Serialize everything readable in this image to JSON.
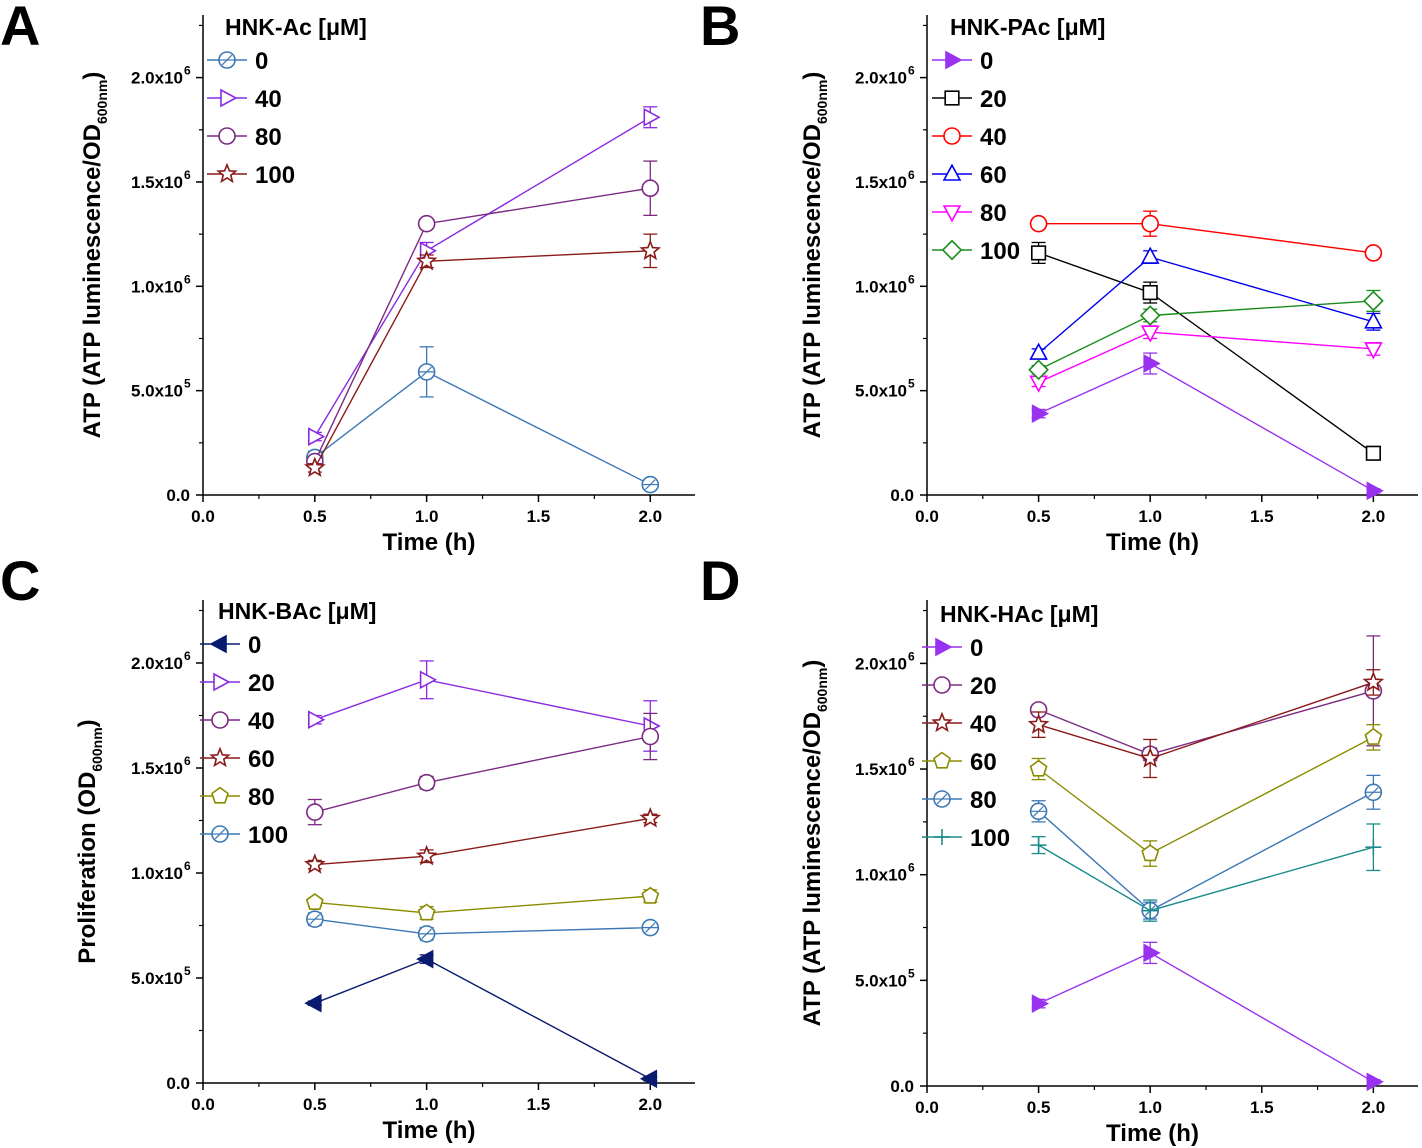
{
  "figure": {
    "exponent_mark": "6",
    "exponent_mark_small": "5"
  },
  "chart_data": [
    {
      "type": "line",
      "panel": "A",
      "legend_title": "HNK-Ac [μM]",
      "xlabel": "Time (h)",
      "ylabel_main": "ATP (ATP luminescence/OD",
      "ylabel_sub": "600nm",
      "ylabel_end": ")",
      "xlim": [
        0,
        2.2
      ],
      "ylim": [
        0,
        2300000
      ],
      "xticks": [
        "0.0",
        "0.5",
        "1.0",
        "1.5",
        "2.0"
      ],
      "yticks": [
        "0.0",
        "5.0x10",
        "1.0x10",
        "1.5x10",
        "2.0x10"
      ],
      "x": [
        0.5,
        1.0,
        2.0
      ],
      "series": [
        {
          "name": "0",
          "color": "#3c78b4",
          "marker": "circle-cross",
          "values": [
            180000,
            590000,
            50000
          ],
          "errors": [
            30000,
            120000,
            20000
          ]
        },
        {
          "name": "40",
          "color": "#8a2be2",
          "marker": "triangle-right",
          "values": [
            280000,
            1170000,
            1810000
          ],
          "errors": [
            20000,
            40000,
            50000
          ]
        },
        {
          "name": "80",
          "color": "#7b2a82",
          "marker": "circle",
          "values": [
            160000,
            1300000,
            1470000
          ],
          "errors": [
            20000,
            20000,
            130000
          ]
        },
        {
          "name": "100",
          "color": "#8b1a1a",
          "marker": "star",
          "values": [
            130000,
            1120000,
            1170000
          ],
          "errors": [
            20000,
            30000,
            80000
          ]
        }
      ]
    },
    {
      "type": "line",
      "panel": "B",
      "legend_title": "HNK-PAc [μM]",
      "xlabel": "Time (h)",
      "ylabel_main": "ATP (ATP luminescence/OD",
      "ylabel_sub": "600nm",
      "ylabel_end": ")",
      "xlim": [
        0,
        2.2
      ],
      "ylim": [
        0,
        2300000
      ],
      "xticks": [
        "0.0",
        "0.5",
        "1.0",
        "1.5",
        "2.0"
      ],
      "yticks": [
        "0.0",
        "5.0x10",
        "1.0x10",
        "1.5x10",
        "2.0x10"
      ],
      "x": [
        0.5,
        1.0,
        2.0
      ],
      "series": [
        {
          "name": "0",
          "color": "#9932f0",
          "marker": "triangle-right-filled",
          "values": [
            390000,
            630000,
            20000
          ],
          "errors": [
            20000,
            50000,
            10000
          ]
        },
        {
          "name": "20",
          "color": "#000000",
          "marker": "square",
          "values": [
            1160000,
            970000,
            200000
          ],
          "errors": [
            50000,
            50000,
            20000
          ]
        },
        {
          "name": "40",
          "color": "#ff0000",
          "marker": "circle",
          "values": [
            1300000,
            1300000,
            1160000
          ],
          "errors": [
            20000,
            60000,
            20000
          ]
        },
        {
          "name": "60",
          "color": "#0000ee",
          "marker": "triangle-up",
          "values": [
            680000,
            1140000,
            830000
          ],
          "errors": [
            20000,
            30000,
            40000
          ]
        },
        {
          "name": "80",
          "color": "#ff00ff",
          "marker": "triangle-down",
          "values": [
            540000,
            780000,
            700000
          ],
          "errors": [
            20000,
            30000,
            30000
          ]
        },
        {
          "name": "100",
          "color": "#1a8c1a",
          "marker": "diamond",
          "values": [
            600000,
            860000,
            930000
          ],
          "errors": [
            20000,
            30000,
            50000
          ]
        }
      ]
    },
    {
      "type": "line",
      "panel": "C",
      "legend_title": "HNK-BAc [μM]",
      "xlabel": "Time (h)",
      "ylabel_main": "Proliferation (OD",
      "ylabel_sub": "600nm",
      "ylabel_end": ")",
      "xlim": [
        0,
        2.2
      ],
      "ylim": [
        0,
        2300000
      ],
      "xticks": [
        "0.0",
        "0.5",
        "1.0",
        "1.5",
        "2.0"
      ],
      "yticks": [
        "0.0",
        "5.0x10",
        "1.0x10",
        "1.5x10",
        "2.0x10"
      ],
      "x": [
        0.5,
        1.0,
        2.0
      ],
      "series": [
        {
          "name": "0",
          "color": "#0a1a6e",
          "marker": "triangle-left-filled",
          "values": [
            380000,
            590000,
            20000
          ],
          "errors": [
            10000,
            20000,
            10000
          ]
        },
        {
          "name": "20",
          "color": "#8a2be2",
          "marker": "triangle-right",
          "values": [
            1730000,
            1920000,
            1700000
          ],
          "errors": [
            20000,
            90000,
            120000
          ]
        },
        {
          "name": "40",
          "color": "#7b2a82",
          "marker": "circle",
          "values": [
            1290000,
            1430000,
            1650000
          ],
          "errors": [
            60000,
            30000,
            110000
          ]
        },
        {
          "name": "60",
          "color": "#8b1a1a",
          "marker": "star",
          "values": [
            1040000,
            1080000,
            1260000
          ],
          "errors": [
            20000,
            30000,
            20000
          ]
        },
        {
          "name": "80",
          "color": "#8b8b00",
          "marker": "pentagon",
          "values": [
            860000,
            810000,
            890000
          ],
          "errors": [
            20000,
            30000,
            30000
          ]
        },
        {
          "name": "100",
          "color": "#3c78b4",
          "marker": "circle-cross",
          "values": [
            780000,
            710000,
            740000
          ],
          "errors": [
            30000,
            30000,
            20000
          ]
        }
      ]
    },
    {
      "type": "line",
      "panel": "D",
      "legend_title": "HNK-HAc [μM]",
      "xlabel": "Time (h)",
      "ylabel_main": "ATP (ATP luminescence/OD",
      "ylabel_sub": "600nm",
      "ylabel_end": ")",
      "xlim": [
        0,
        2.2
      ],
      "ylim": [
        0,
        2300000
      ],
      "xticks": [
        "0.0",
        "0.5",
        "1.0",
        "1.5",
        "2.0"
      ],
      "yticks": [
        "0.0",
        "5.0x10",
        "1.0x10",
        "1.5x10",
        "2.0x10"
      ],
      "x": [
        0.5,
        1.0,
        2.0
      ],
      "series": [
        {
          "name": "0",
          "color": "#9932f0",
          "marker": "triangle-right-filled",
          "values": [
            390000,
            630000,
            20000
          ],
          "errors": [
            20000,
            50000,
            10000
          ]
        },
        {
          "name": "20",
          "color": "#7b2a82",
          "marker": "circle",
          "values": [
            1780000,
            1570000,
            1870000
          ],
          "errors": [
            20000,
            30000,
            260000
          ]
        },
        {
          "name": "40",
          "color": "#8b1a1a",
          "marker": "star",
          "values": [
            1710000,
            1550000,
            1910000
          ],
          "errors": [
            60000,
            90000,
            60000
          ]
        },
        {
          "name": "60",
          "color": "#8b8b00",
          "marker": "pentagon",
          "values": [
            1500000,
            1100000,
            1650000
          ],
          "errors": [
            50000,
            60000,
            60000
          ]
        },
        {
          "name": "80",
          "color": "#3c78b4",
          "marker": "circle-cross",
          "values": [
            1300000,
            830000,
            1390000
          ],
          "errors": [
            50000,
            40000,
            80000
          ]
        },
        {
          "name": "100",
          "color": "#1a8a8a",
          "marker": "plus",
          "values": [
            1140000,
            830000,
            1130000
          ],
          "errors": [
            40000,
            50000,
            110000
          ]
        }
      ]
    }
  ]
}
